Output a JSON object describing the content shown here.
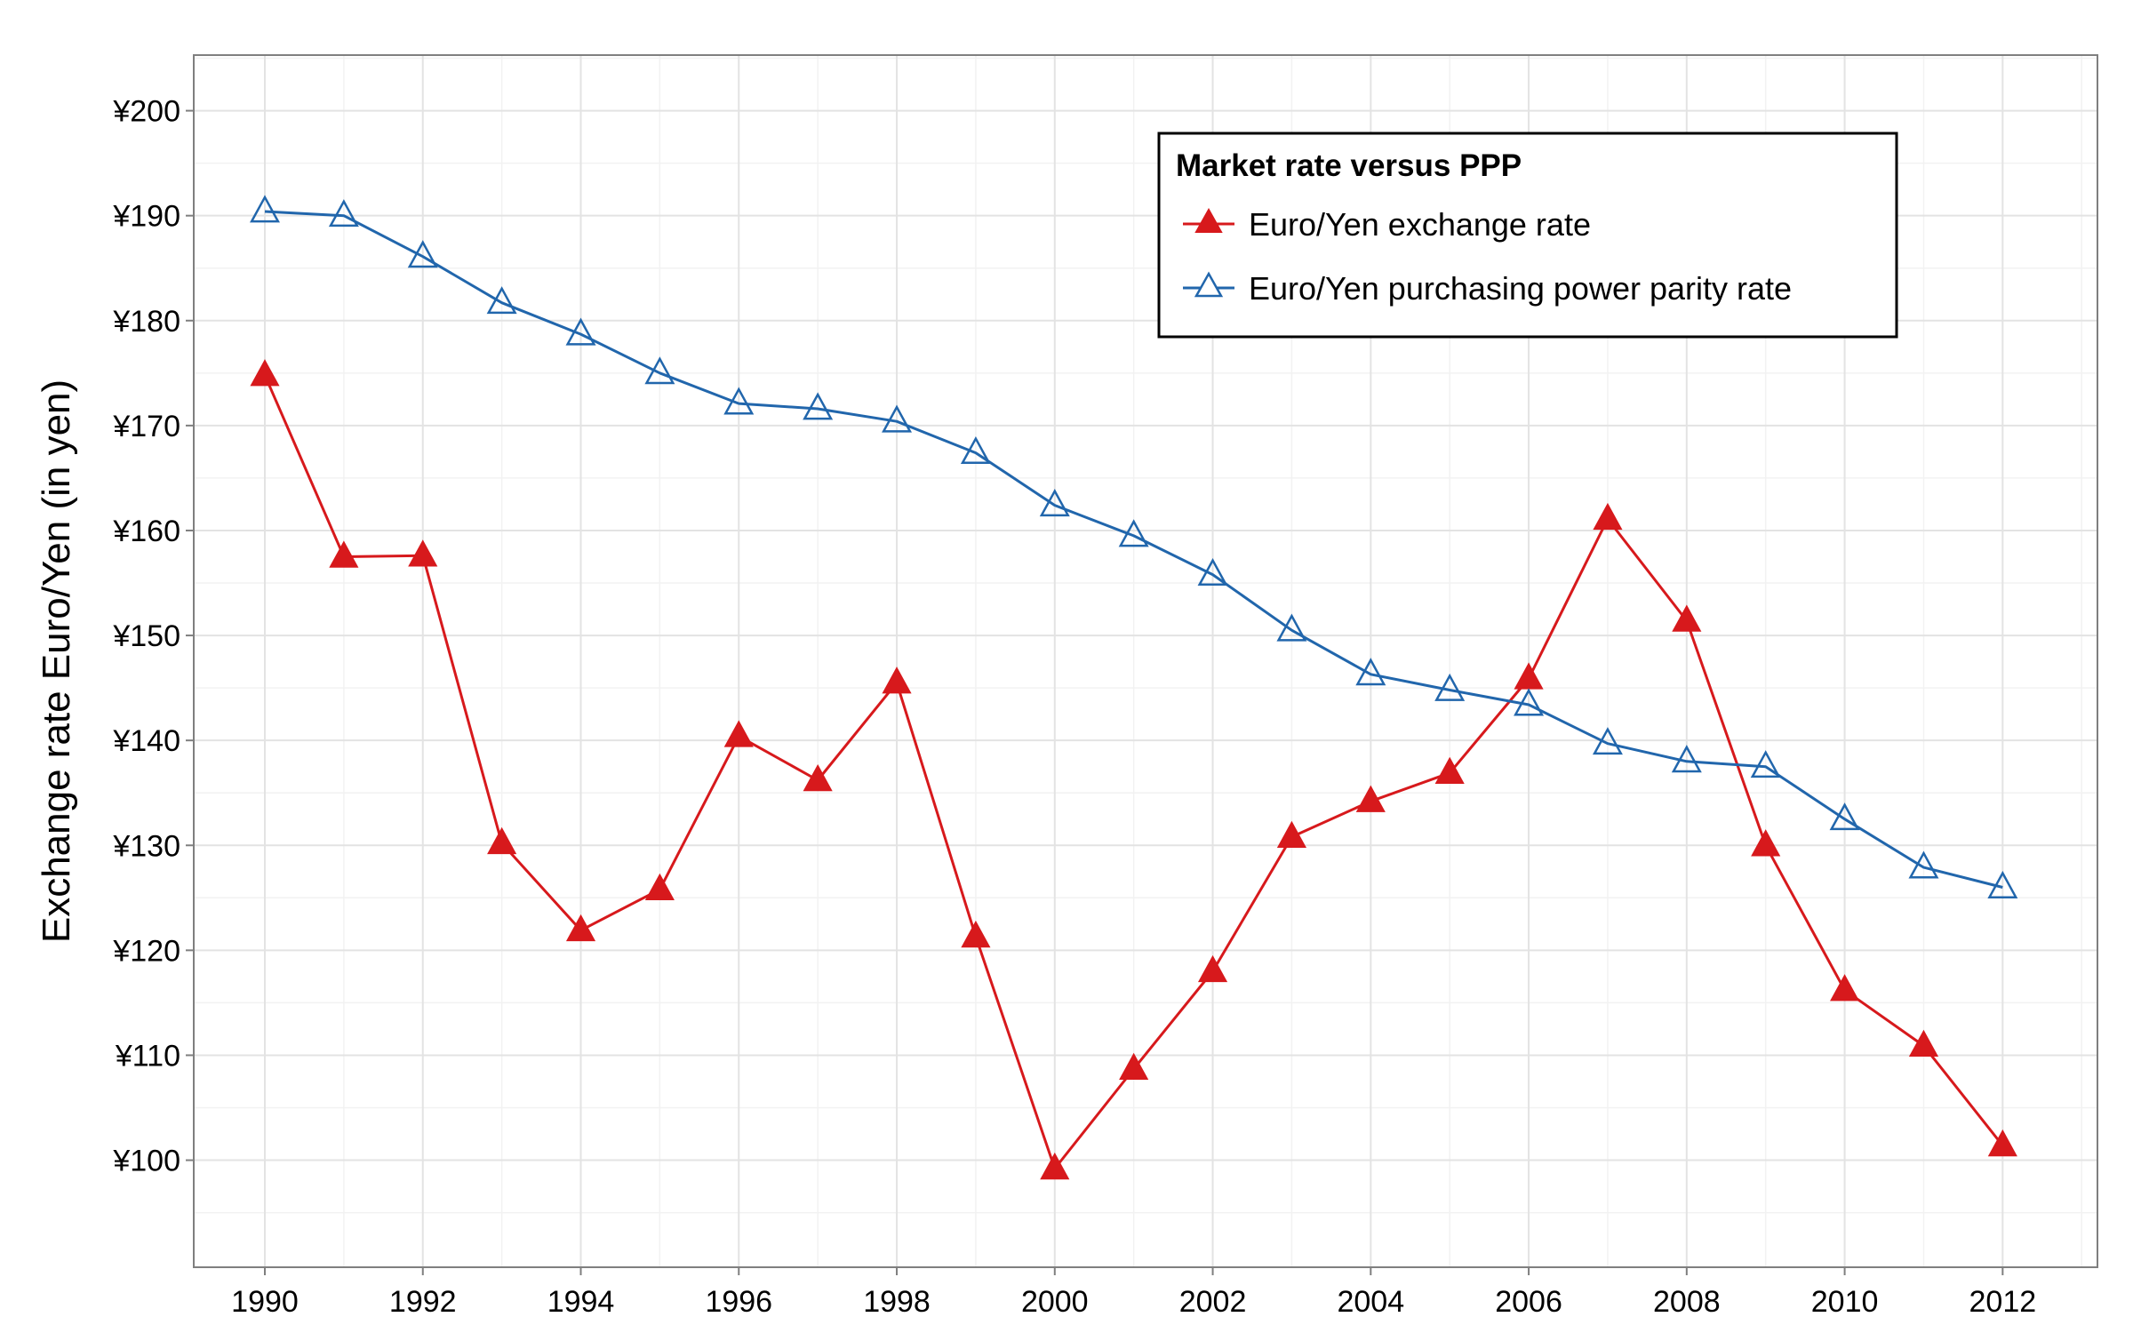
{
  "chart_data": {
    "type": "line",
    "xlabel": "",
    "ylabel": "Exchange rate Euro/Yen (in yen)",
    "x": [
      1990,
      1991,
      1992,
      1993,
      1994,
      1995,
      1996,
      1997,
      1998,
      1999,
      2000,
      2001,
      2002,
      2003,
      2004,
      2005,
      2006,
      2007,
      2008,
      2009,
      2010,
      2011,
      2012
    ],
    "xlim": [
      1989.1,
      2013.2
    ],
    "ylim": [
      89.8,
      205.3
    ],
    "x_ticks": [
      1990,
      1992,
      1994,
      1996,
      1998,
      2000,
      2002,
      2004,
      2006,
      2008,
      2010,
      2012
    ],
    "x_tick_labels": [
      "1990",
      "1992",
      "1994",
      "1996",
      "1998",
      "2000",
      "2002",
      "2004",
      "2006",
      "2008",
      "2010",
      "2012"
    ],
    "y_ticks": [
      100,
      110,
      120,
      130,
      140,
      150,
      160,
      170,
      180,
      190,
      200
    ],
    "y_tick_labels": [
      "¥100",
      "¥110",
      "¥120",
      "¥130",
      "¥140",
      "¥150",
      "¥160",
      "¥170",
      "¥180",
      "¥190",
      "¥200"
    ],
    "grid": true,
    "legend": {
      "title": "Market rate versus PPP",
      "placement": "top-right"
    },
    "series": [
      {
        "name": "Euro/Yen exchange rate",
        "color": "#d7191c",
        "marker": "filled-triangle",
        "values": [
          174.8,
          157.5,
          157.6,
          130.2,
          121.9,
          125.8,
          140.4,
          136.2,
          145.5,
          121.3,
          99.2,
          108.7,
          118.0,
          130.8,
          134.2,
          136.9,
          145.9,
          161.1,
          151.4,
          130.0,
          116.2,
          110.9,
          101.4
        ]
      },
      {
        "name": "Euro/Yen purchasing power parity rate",
        "color": "#2166ac",
        "marker": "hollow-triangle",
        "values": [
          190.4,
          190.0,
          186.1,
          181.7,
          178.7,
          175.0,
          172.1,
          171.6,
          170.4,
          167.4,
          162.4,
          159.5,
          155.8,
          150.5,
          146.3,
          144.8,
          143.4,
          139.7,
          138.0,
          137.5,
          132.5,
          127.9,
          126.0
        ]
      }
    ]
  }
}
